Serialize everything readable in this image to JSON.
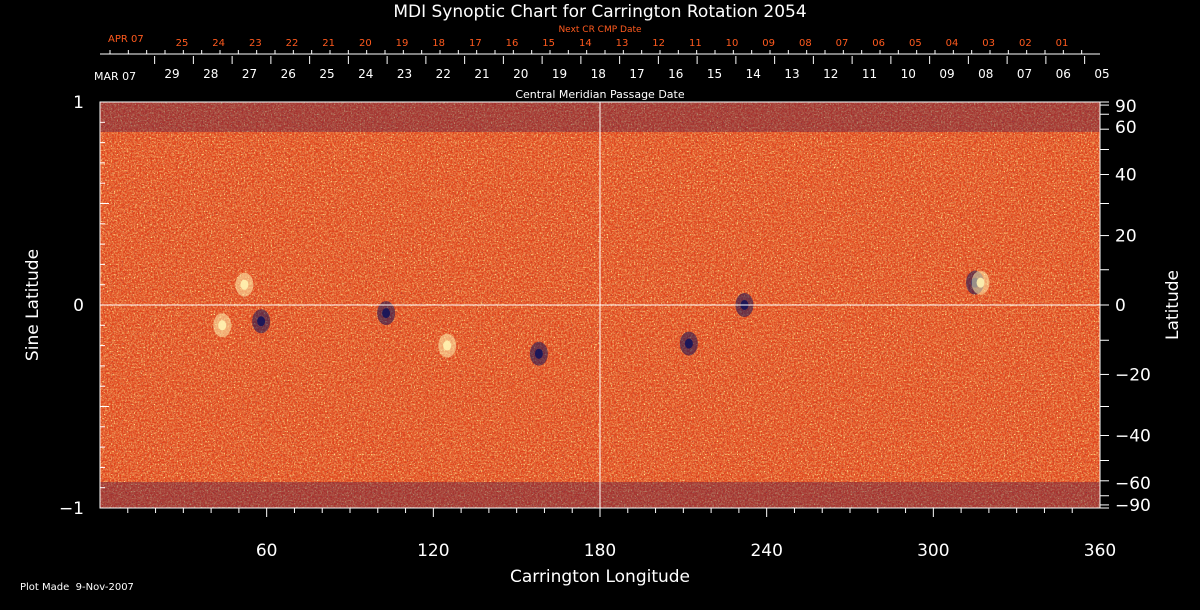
{
  "chart_data": {
    "type": "heatmap",
    "title": "MDI Synoptic Chart for Carrington Rotation 2054",
    "xlabel": "Carrington Longitude",
    "ylabel_left": "Sine Latitude",
    "ylabel_right": "Latitude",
    "xlim": [
      0,
      360
    ],
    "ylim": [
      -1,
      1
    ],
    "x_ticks": [
      "60",
      "120",
      "180",
      "240",
      "300",
      "360"
    ],
    "x_tick_values": [
      60,
      120,
      180,
      240,
      300,
      360
    ],
    "y_left_ticks": [
      "1",
      "0",
      "−1"
    ],
    "y_left_tick_values": [
      1,
      0,
      -1
    ],
    "y_right_ticks": [
      "90",
      "60",
      "40",
      "20",
      "0",
      "−20",
      "−40",
      "−60",
      "−90"
    ],
    "y_right_tick_values": [
      90,
      60,
      40,
      20,
      0,
      -20,
      -40,
      -60,
      -90
    ],
    "top_axis_label": "Central Meridian Passage Date",
    "top_axis_start": "MAR 07",
    "top_axis_days": [
      "29",
      "28",
      "27",
      "26",
      "25",
      "24",
      "23",
      "22",
      "21",
      "20",
      "19",
      "18",
      "17",
      "16",
      "15",
      "14",
      "13",
      "12",
      "11",
      "10",
      "09",
      "08",
      "07",
      "06",
      "05"
    ],
    "next_axis_label": "Next CR CMP Date",
    "next_axis_start": "APR 07",
    "next_axis_days": [
      "25",
      "24",
      "23",
      "22",
      "21",
      "20",
      "19",
      "18",
      "17",
      "16",
      "15",
      "14",
      "13",
      "12",
      "11",
      "10",
      "09",
      "08",
      "07",
      "06",
      "05",
      "04",
      "03",
      "02",
      "01"
    ],
    "footer": "Plot Made  9-Nov-2007",
    "gridlines": {
      "longitude": 180,
      "sine_latitude": 0
    },
    "colors": {
      "background": "#000000",
      "map_base": "#e0441c",
      "accent_red": "#ff5a1e",
      "positive": "#fff2b0",
      "negative": "#14145a"
    },
    "features": [
      {
        "lon": 44,
        "sinlat": -0.1,
        "polarity": "positive"
      },
      {
        "lon": 58,
        "sinlat": -0.08,
        "polarity": "negative"
      },
      {
        "lon": 52,
        "sinlat": 0.1,
        "polarity": "positive"
      },
      {
        "lon": 103,
        "sinlat": -0.04,
        "polarity": "negative"
      },
      {
        "lon": 125,
        "sinlat": -0.2,
        "polarity": "positive"
      },
      {
        "lon": 158,
        "sinlat": -0.24,
        "polarity": "negative"
      },
      {
        "lon": 232,
        "sinlat": 0.0,
        "polarity": "negative"
      },
      {
        "lon": 212,
        "sinlat": -0.19,
        "polarity": "negative"
      },
      {
        "lon": 315,
        "sinlat": 0.11,
        "polarity": "negative"
      },
      {
        "lon": 317,
        "sinlat": 0.11,
        "polarity": "positive"
      }
    ]
  }
}
